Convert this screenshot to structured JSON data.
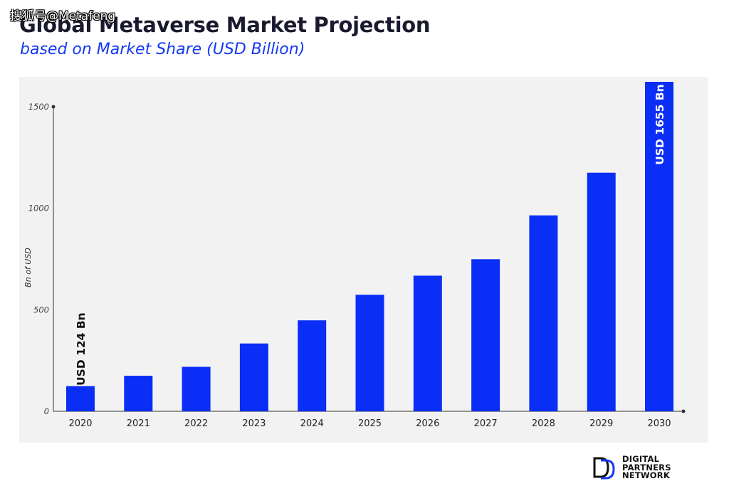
{
  "watermark": "搜狐号@Metafeng",
  "logo": {
    "lines": [
      "DIGITAL",
      "PARTNERS",
      "NETWORK"
    ],
    "colors": {
      "dark": "#111111",
      "accent": "#1539f5"
    }
  },
  "colors": {
    "bar": "#0a2ef5",
    "title": "#1a1a2e",
    "subtitle": "#1539f5",
    "panel": "#f2f2f2",
    "axis": "#333333"
  },
  "chart_data": {
    "type": "bar",
    "title": "Global Metaverse Market Projection",
    "subtitle": "based on Market Share (USD Billion)",
    "xlabel": "",
    "ylabel": "Bn of USD",
    "categories": [
      "2020",
      "2021",
      "2022",
      "2023",
      "2024",
      "2025",
      "2026",
      "2027",
      "2028",
      "2029",
      "2030"
    ],
    "values": [
      124,
      175,
      219,
      334,
      448,
      574,
      668,
      749,
      965,
      1175,
      1655
    ],
    "yticks": [
      0,
      500,
      1000,
      1500
    ],
    "ylim": [
      0,
      1500
    ],
    "grid": false,
    "data_labels": [
      {
        "index": 0,
        "text": "USD 124 Bn"
      },
      {
        "index": 10,
        "text": "USD 1655 Bn"
      }
    ]
  }
}
